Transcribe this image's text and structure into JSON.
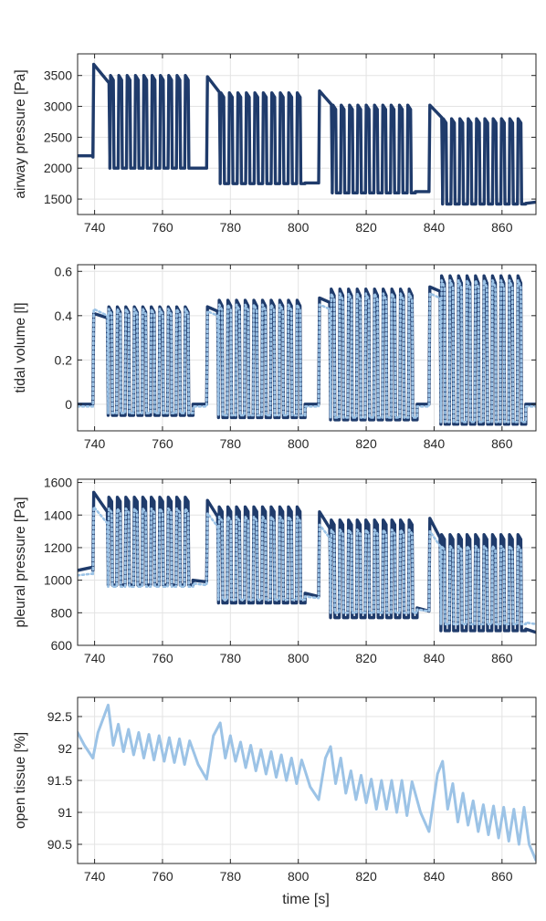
{
  "figure": {
    "xlabel": "time [s]"
  },
  "colors": {
    "dark": "#1f3b6b",
    "light": "#9cc3e6",
    "grid": "#e3e3e3",
    "axis": "#262626"
  },
  "chart_data": [
    {
      "type": "line",
      "ylabel": "airway pressure [Pa]",
      "xlim": [
        735,
        870
      ],
      "ylim": [
        1250,
        3850
      ],
      "xticks": [
        740,
        760,
        780,
        800,
        820,
        840,
        860
      ],
      "yticks": [
        1500,
        2000,
        2500,
        3000,
        3500
      ],
      "grid": true,
      "series": [
        {
          "style": "solid-dark",
          "segments": [
            {
              "t0": 735,
              "t1": 739.5,
              "mode": "flat",
              "base": 2200,
              "peak": 2200
            },
            {
              "t0": 739.5,
              "t1": 744.5,
              "mode": "hold",
              "base": 2180,
              "peak": 3680,
              "decay": 300
            },
            {
              "t0": 744.5,
              "t1": 769,
              "mode": "breaths",
              "base": 2000,
              "peak": 3500,
              "n": 10
            },
            {
              "t0": 769,
              "t1": 773,
              "mode": "flat",
              "base": 2000,
              "peak": 2000
            },
            {
              "t0": 773,
              "t1": 777,
              "mode": "hold",
              "base": 2000,
              "peak": 3480,
              "decay": 250
            },
            {
              "t0": 777,
              "t1": 802,
              "mode": "breaths",
              "base": 1750,
              "peak": 3220,
              "n": 10
            },
            {
              "t0": 802,
              "t1": 806,
              "mode": "flat",
              "base": 1760,
              "peak": 1760
            },
            {
              "t0": 806,
              "t1": 810,
              "mode": "hold",
              "base": 1760,
              "peak": 3250,
              "decay": 220
            },
            {
              "t0": 810,
              "t1": 834.5,
              "mode": "breaths",
              "base": 1600,
              "peak": 3020,
              "n": 10
            },
            {
              "t0": 834.5,
              "t1": 838.5,
              "mode": "flat",
              "base": 1620,
              "peak": 1620
            },
            {
              "t0": 838.5,
              "t1": 842.5,
              "mode": "hold",
              "base": 1620,
              "peak": 3020,
              "decay": 200
            },
            {
              "t0": 842.5,
              "t1": 867,
              "mode": "breaths",
              "base": 1420,
              "peak": 2800,
              "n": 10
            },
            {
              "t0": 867,
              "t1": 870,
              "mode": "flat",
              "base": 1430,
              "peak": 1450
            }
          ]
        }
      ]
    },
    {
      "type": "line",
      "ylabel": "tidal volume [l]",
      "xlim": [
        735,
        870
      ],
      "ylim": [
        -0.12,
        0.63
      ],
      "xticks": [
        740,
        760,
        780,
        800,
        820,
        840,
        860
      ],
      "yticks": [
        0,
        0.2,
        0.4,
        0.6
      ],
      "grid": true,
      "series": [
        {
          "style": "solid-dark",
          "segments": [
            {
              "t0": 735,
              "t1": 739.5,
              "mode": "flat",
              "base": 0,
              "peak": 0
            },
            {
              "t0": 739.5,
              "t1": 744,
              "mode": "hold",
              "base": 0,
              "peak": 0.41,
              "decay": 0.02
            },
            {
              "t0": 744,
              "t1": 769,
              "mode": "breaths",
              "base": -0.05,
              "peak": 0.44,
              "n": 10
            },
            {
              "t0": 769,
              "t1": 773,
              "mode": "flat",
              "base": 0,
              "peak": 0
            },
            {
              "t0": 773,
              "t1": 776.5,
              "mode": "hold",
              "base": 0,
              "peak": 0.44,
              "decay": 0.02
            },
            {
              "t0": 776.5,
              "t1": 802,
              "mode": "breaths",
              "base": -0.06,
              "peak": 0.47,
              "n": 10
            },
            {
              "t0": 802,
              "t1": 806,
              "mode": "flat",
              "base": 0,
              "peak": 0
            },
            {
              "t0": 806,
              "t1": 809.5,
              "mode": "hold",
              "base": 0,
              "peak": 0.48,
              "decay": 0.02
            },
            {
              "t0": 809.5,
              "t1": 835,
              "mode": "breaths",
              "base": -0.07,
              "peak": 0.52,
              "n": 10
            },
            {
              "t0": 835,
              "t1": 838.5,
              "mode": "flat",
              "base": 0,
              "peak": 0
            },
            {
              "t0": 838.5,
              "t1": 842,
              "mode": "hold",
              "base": 0,
              "peak": 0.53,
              "decay": 0.02
            },
            {
              "t0": 842,
              "t1": 867,
              "mode": "breaths",
              "base": -0.09,
              "peak": 0.58,
              "n": 10
            },
            {
              "t0": 867,
              "t1": 870,
              "mode": "flat",
              "base": 0,
              "peak": 0
            }
          ]
        },
        {
          "style": "dotted-light",
          "segments": [
            {
              "t0": 735,
              "t1": 739.5,
              "mode": "flat",
              "base": -0.01,
              "peak": -0.01
            },
            {
              "t0": 739.5,
              "t1": 744,
              "mode": "hold",
              "base": -0.01,
              "peak": 0.43,
              "decay": 0.03
            },
            {
              "t0": 744,
              "t1": 769,
              "mode": "breaths",
              "base": -0.04,
              "peak": 0.43,
              "n": 10
            },
            {
              "t0": 769,
              "t1": 773,
              "mode": "flat",
              "base": -0.01,
              "peak": -0.01
            },
            {
              "t0": 773,
              "t1": 776.5,
              "mode": "hold",
              "base": -0.01,
              "peak": 0.42,
              "decay": 0.02
            },
            {
              "t0": 776.5,
              "t1": 802,
              "mode": "breaths",
              "base": -0.05,
              "peak": 0.45,
              "n": 10
            },
            {
              "t0": 802,
              "t1": 806,
              "mode": "flat",
              "base": -0.01,
              "peak": -0.01
            },
            {
              "t0": 806,
              "t1": 809.5,
              "mode": "hold",
              "base": -0.01,
              "peak": 0.45,
              "decay": 0.02
            },
            {
              "t0": 809.5,
              "t1": 835,
              "mode": "breaths",
              "base": -0.06,
              "peak": 0.5,
              "n": 10
            },
            {
              "t0": 835,
              "t1": 838.5,
              "mode": "flat",
              "base": -0.01,
              "peak": -0.01
            },
            {
              "t0": 838.5,
              "t1": 842,
              "mode": "hold",
              "base": -0.01,
              "peak": 0.5,
              "decay": 0.02
            },
            {
              "t0": 842,
              "t1": 867,
              "mode": "breaths",
              "base": -0.08,
              "peak": 0.56,
              "n": 10
            },
            {
              "t0": 867,
              "t1": 870,
              "mode": "flat",
              "base": -0.01,
              "peak": -0.01
            }
          ]
        }
      ]
    },
    {
      "type": "line",
      "ylabel": "pleural pressure [Pa]",
      "xlim": [
        735,
        870
      ],
      "ylim": [
        600,
        1620
      ],
      "xticks": [
        740,
        760,
        780,
        800,
        820,
        840,
        860
      ],
      "yticks": [
        600,
        800,
        1000,
        1200,
        1400,
        1600
      ],
      "grid": true,
      "series": [
        {
          "style": "solid-dark",
          "segments": [
            {
              "t0": 735,
              "t1": 739.5,
              "mode": "flat",
              "base": 1060,
              "peak": 1080
            },
            {
              "t0": 739.5,
              "t1": 744,
              "mode": "hold",
              "base": 1060,
              "peak": 1540,
              "decay": 120
            },
            {
              "t0": 744,
              "t1": 769,
              "mode": "breaths",
              "base": 970,
              "peak": 1510,
              "n": 10
            },
            {
              "t0": 769,
              "t1": 773,
              "mode": "flat",
              "base": 1000,
              "peak": 990
            },
            {
              "t0": 773,
              "t1": 776.5,
              "mode": "hold",
              "base": 1000,
              "peak": 1490,
              "decay": 100
            },
            {
              "t0": 776.5,
              "t1": 802,
              "mode": "breaths",
              "base": 860,
              "peak": 1450,
              "n": 10
            },
            {
              "t0": 802,
              "t1": 806,
              "mode": "flat",
              "base": 920,
              "peak": 900
            },
            {
              "t0": 806,
              "t1": 809.5,
              "mode": "hold",
              "base": 920,
              "peak": 1420,
              "decay": 100
            },
            {
              "t0": 809.5,
              "t1": 835,
              "mode": "breaths",
              "base": 770,
              "peak": 1370,
              "n": 10
            },
            {
              "t0": 835,
              "t1": 838.5,
              "mode": "flat",
              "base": 830,
              "peak": 810
            },
            {
              "t0": 838.5,
              "t1": 842,
              "mode": "hold",
              "base": 830,
              "peak": 1380,
              "decay": 120
            },
            {
              "t0": 842,
              "t1": 867,
              "mode": "breaths",
              "base": 690,
              "peak": 1280,
              "n": 10
            },
            {
              "t0": 867,
              "t1": 870,
              "mode": "flat",
              "base": 700,
              "peak": 680
            }
          ]
        },
        {
          "style": "dotted-light",
          "segments": [
            {
              "t0": 735,
              "t1": 739.5,
              "mode": "flat",
              "base": 1030,
              "peak": 1040
            },
            {
              "t0": 739.5,
              "t1": 744,
              "mode": "hold",
              "base": 1030,
              "peak": 1450,
              "decay": 100
            },
            {
              "t0": 744,
              "t1": 769,
              "mode": "breaths",
              "base": 960,
              "peak": 1440,
              "n": 10
            },
            {
              "t0": 769,
              "t1": 773,
              "mode": "flat",
              "base": 980,
              "peak": 970
            },
            {
              "t0": 773,
              "t1": 776.5,
              "mode": "hold",
              "base": 980,
              "peak": 1410,
              "decay": 80
            },
            {
              "t0": 776.5,
              "t1": 802,
              "mode": "breaths",
              "base": 880,
              "peak": 1390,
              "n": 10
            },
            {
              "t0": 802,
              "t1": 806,
              "mode": "flat",
              "base": 900,
              "peak": 890
            },
            {
              "t0": 806,
              "t1": 809.5,
              "mode": "hold",
              "base": 900,
              "peak": 1340,
              "decay": 80
            },
            {
              "t0": 809.5,
              "t1": 835,
              "mode": "breaths",
              "base": 800,
              "peak": 1310,
              "n": 10
            },
            {
              "t0": 835,
              "t1": 838.5,
              "mode": "flat",
              "base": 820,
              "peak": 810
            },
            {
              "t0": 838.5,
              "t1": 842,
              "mode": "hold",
              "base": 820,
              "peak": 1300,
              "decay": 90
            },
            {
              "t0": 842,
              "t1": 867,
              "mode": "breaths",
              "base": 730,
              "peak": 1210,
              "n": 10
            },
            {
              "t0": 867,
              "t1": 870,
              "mode": "flat",
              "base": 740,
              "peak": 730
            }
          ]
        }
      ]
    },
    {
      "type": "line",
      "ylabel": "open tissue [%]",
      "xlim": [
        735,
        870
      ],
      "ylim": [
        90.2,
        92.8
      ],
      "xticks": [
        740,
        760,
        780,
        800,
        820,
        840,
        860
      ],
      "yticks": [
        90.5,
        91,
        91.5,
        92,
        92.5
      ],
      "grid": true,
      "series": [
        {
          "style": "solid-light",
          "points": [
            [
              735,
              92.25
            ],
            [
              737,
              92.05
            ],
            [
              739.5,
              91.85
            ],
            [
              741,
              92.25
            ],
            [
              744,
              92.68
            ],
            [
              745.5,
              92.05
            ],
            [
              747,
              92.38
            ],
            [
              748.5,
              91.95
            ],
            [
              750,
              92.3
            ],
            [
              751.5,
              91.9
            ],
            [
              753,
              92.25
            ],
            [
              754.5,
              91.85
            ],
            [
              756,
              92.22
            ],
            [
              757.5,
              91.82
            ],
            [
              759,
              92.2
            ],
            [
              760.5,
              91.8
            ],
            [
              762,
              92.17
            ],
            [
              763.5,
              91.78
            ],
            [
              765,
              92.15
            ],
            [
              766.5,
              91.75
            ],
            [
              768,
              92.12
            ],
            [
              770.5,
              91.75
            ],
            [
              773,
              91.52
            ],
            [
              775,
              92.2
            ],
            [
              777,
              92.4
            ],
            [
              778.5,
              91.85
            ],
            [
              780,
              92.2
            ],
            [
              781.5,
              91.8
            ],
            [
              783,
              92.1
            ],
            [
              784.5,
              91.7
            ],
            [
              786,
              92.05
            ],
            [
              787.5,
              91.65
            ],
            [
              789,
              91.98
            ],
            [
              790.5,
              91.6
            ],
            [
              792,
              91.95
            ],
            [
              793.5,
              91.55
            ],
            [
              795,
              91.9
            ],
            [
              796.5,
              91.5
            ],
            [
              798,
              91.85
            ],
            [
              799.5,
              91.45
            ],
            [
              801,
              91.82
            ],
            [
              803.5,
              91.4
            ],
            [
              806,
              91.2
            ],
            [
              808,
              91.85
            ],
            [
              809.5,
              92.03
            ],
            [
              811,
              91.45
            ],
            [
              812.5,
              91.85
            ],
            [
              814,
              91.3
            ],
            [
              815.5,
              91.65
            ],
            [
              817,
              91.2
            ],
            [
              818.5,
              91.58
            ],
            [
              820,
              91.15
            ],
            [
              821.5,
              91.52
            ],
            [
              823,
              91.05
            ],
            [
              824.5,
              91.5
            ],
            [
              826,
              91.05
            ],
            [
              827.5,
              91.5
            ],
            [
              829,
              91.0
            ],
            [
              830.5,
              91.5
            ],
            [
              832,
              90.95
            ],
            [
              833.5,
              91.48
            ],
            [
              836,
              91.0
            ],
            [
              838.5,
              90.7
            ],
            [
              841,
              91.6
            ],
            [
              842.5,
              91.8
            ],
            [
              844,
              91.05
            ],
            [
              845.5,
              91.45
            ],
            [
              847,
              90.85
            ],
            [
              848.5,
              91.3
            ],
            [
              850,
              90.8
            ],
            [
              851.5,
              91.18
            ],
            [
              853,
              90.7
            ],
            [
              854.5,
              91.12
            ],
            [
              856,
              90.65
            ],
            [
              857.5,
              91.1
            ],
            [
              859,
              90.6
            ],
            [
              860.5,
              91.08
            ],
            [
              862,
              90.55
            ],
            [
              863.5,
              91.05
            ],
            [
              865,
              90.5
            ],
            [
              866.5,
              91.08
            ],
            [
              868,
              90.5
            ],
            [
              870,
              90.25
            ]
          ]
        }
      ]
    }
  ]
}
